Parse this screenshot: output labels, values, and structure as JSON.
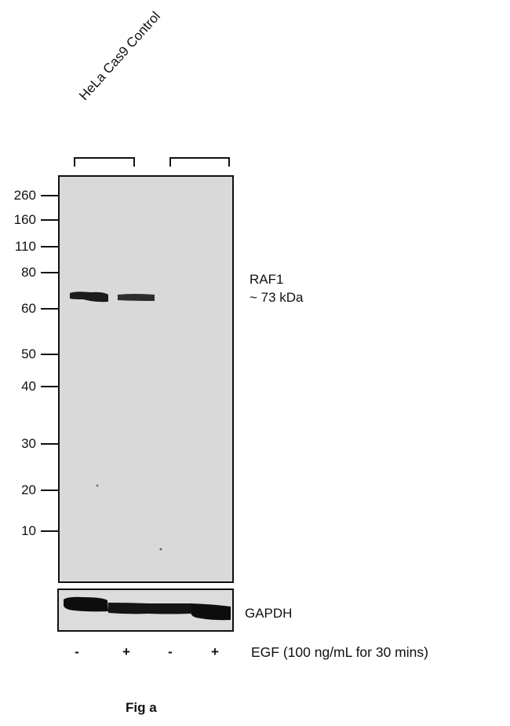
{
  "sample_label": "HeLa Cas9 Control",
  "markers": [
    "260",
    "160",
    "110",
    "80",
    "60",
    "50",
    "40",
    "30",
    "20",
    "10"
  ],
  "target": {
    "name": "RAF1",
    "size": "~ 73 kDa"
  },
  "loading_control": "GAPDH",
  "treatment": {
    "signs": [
      "-",
      "+",
      "-",
      "+"
    ],
    "label": "EGF (100 ng/mL for 30 mins)"
  },
  "figure_label": "Fig a",
  "colors": {
    "membrane": "#d9d9d9",
    "band": "#111111"
  }
}
